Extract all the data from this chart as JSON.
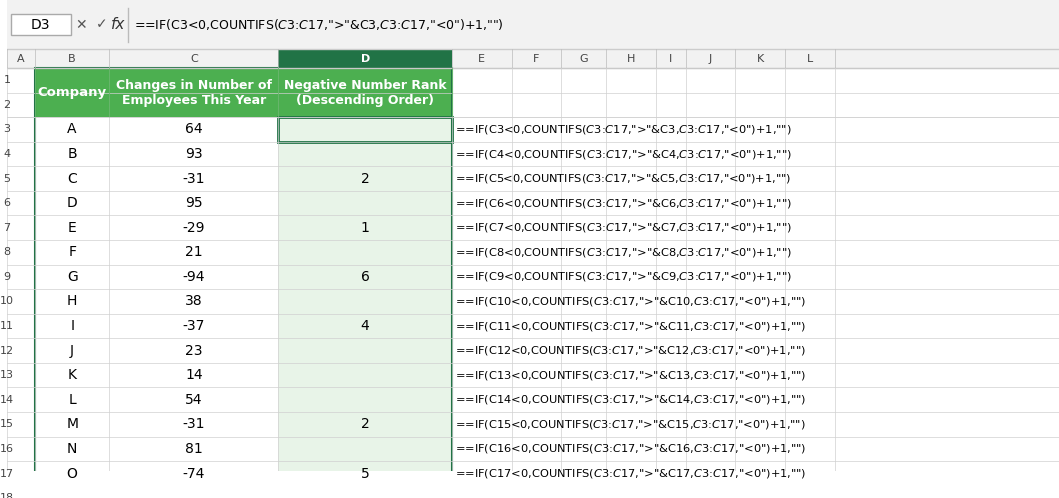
{
  "formula_bar_cell": "D3",
  "formula_bar_formula": "=IF(C3<0,COUNTIFS($C$3:$C$17,\">\"&C3,$C$3:$C$17,\"<0\")+1,\"\")",
  "col_letters": [
    "A",
    "B",
    "C",
    "D",
    "E",
    "F",
    "G",
    "H",
    "I",
    "J",
    "K",
    "L"
  ],
  "row_numbers": [
    "1",
    "2",
    "3",
    "4",
    "5",
    "6",
    "7",
    "8",
    "9",
    "10",
    "11",
    "12",
    "13",
    "14",
    "15",
    "16",
    "17",
    "18"
  ],
  "header_bg": "#4CAF50",
  "header_fg": "#FFFFFF",
  "header_row": 2,
  "companies": [
    "A",
    "B",
    "C",
    "D",
    "E",
    "F",
    "G",
    "H",
    "I",
    "J",
    "K",
    "L",
    "M",
    "N",
    "O"
  ],
  "changes": [
    64,
    93,
    -31,
    95,
    -29,
    21,
    -94,
    38,
    -37,
    23,
    14,
    54,
    -31,
    81,
    -74
  ],
  "ranks": [
    "",
    "",
    "2",
    "",
    "1",
    "",
    "6",
    "",
    "4",
    "",
    "",
    "",
    "2",
    "",
    "5"
  ],
  "formulas": [
    "=IF(C3<0,COUNTIFS($C$3:$C$17,\">\"&C3,$C$3:$C$17,\"<0\")+1,\"\")",
    "=IF(C4<0,COUNTIFS($C$3:$C$17,\">\"&C4,$C$3:$C$17,\"<0\")+1,\"\")",
    "=IF(C5<0,COUNTIFS($C$3:$C$17,\">\"&C5,$C$3:$C$17,\"<0\")+1,\"\")",
    "=IF(C6<0,COUNTIFS($C$3:$C$17,\">\"&C6,$C$3:$C$17,\"<0\")+1,\"\")",
    "=IF(C7<0,COUNTIFS($C$3:$C$17,\">\"&C7,$C$3:$C$17,\"<0\")+1,\"\")",
    "=IF(C8<0,COUNTIFS($C$3:$C$17,\">\"&C8,$C$3:$C$17,\"<0\")+1,\"\")",
    "=IF(C9<0,COUNTIFS($C$3:$C$17,\">\"&C9,$C$3:$C$17,\"<0\")+1,\"\")",
    "=IF(C10<0,COUNTIFS($C$3:$C$17,\">\"&C10,$C$3:$C$17,\"<0\")+1,\"\")",
    "=IF(C11<0,COUNTIFS($C$3:$C$17,\">\"&C11,$C$3:$C$17,\"<0\")+1,\"\")",
    "=IF(C12<0,COUNTIFS($C$3:$C$17,\">\"&C12,$C$3:$C$17,\"<0\")+1,\"\")",
    "=IF(C13<0,COUNTIFS($C$3:$C$17,\">\"&C13,$C$3:$C$17,\"<0\")+1,\"\")",
    "=IF(C14<0,COUNTIFS($C$3:$C$17,\">\"&C14,$C$3:$C$17,\"<0\")+1,\"\")",
    "=IF(C15<0,COUNTIFS($C$3:$C$17,\">\"&C15,$C$3:$C$17,\"<0\")+1,\"\")",
    "=IF(C16<0,COUNTIFS($C$3:$C$17,\">\"&C16,$C$3:$C$17,\"<0\")+1,\"\")",
    "=IF(C17<0,COUNTIFS($C$3:$C$17,\">\"&C17,$C$3:$C$17,\"<0\")+1,\"\")"
  ],
  "col_header_bg": "#F2F2F2",
  "cell_bg": "#FFFFFF",
  "grid_color": "#D0D0D0",
  "selected_col_bg": "#E8F4E8",
  "selected_cell_border": "#217346",
  "toolbar_bg": "#FFFFFF",
  "fig_bg": "#FFFFFF"
}
